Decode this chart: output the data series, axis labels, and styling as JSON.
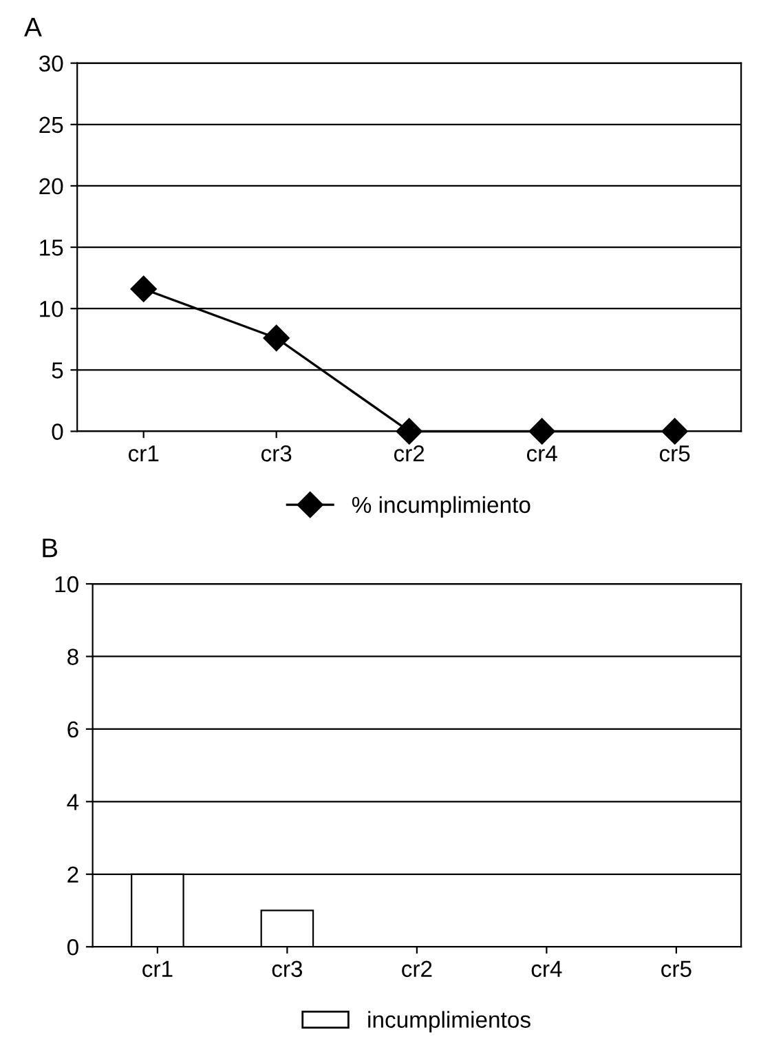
{
  "chart_data": [
    {
      "type": "line",
      "title": "A",
      "categories": [
        "cr1",
        "cr3",
        "cr2",
        "cr4",
        "cr5"
      ],
      "series": [
        {
          "name": "% incumplimiento",
          "color": "#000000",
          "values": [
            11.6,
            7.6,
            0,
            0,
            0
          ]
        }
      ],
      "ylim": [
        0,
        30
      ],
      "yticks": [
        0,
        5,
        10,
        15,
        20,
        25,
        30
      ],
      "grid": "y",
      "legend": "bottom",
      "marker": "diamond",
      "line_style": "solid"
    },
    {
      "type": "bar",
      "title": "B",
      "categories": [
        "cr1",
        "cr3",
        "cr2",
        "cr4",
        "cr5"
      ],
      "series": [
        {
          "name": "incumplimientos",
          "color": "#ffffff",
          "values": [
            2,
            1,
            0,
            0,
            0
          ]
        }
      ],
      "ylim": [
        0,
        10
      ],
      "yticks": [
        0,
        2,
        4,
        6,
        8,
        10
      ],
      "grid": "y",
      "legend": "bottom"
    }
  ]
}
